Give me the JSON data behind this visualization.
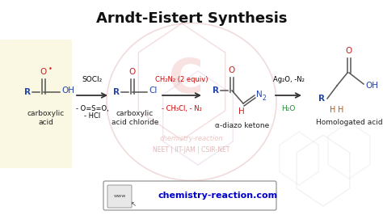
{
  "title": "Arndt-Eistert Synthesis",
  "title_fontsize": 13,
  "title_fontweight": "bold",
  "bg_color": "#ffffff",
  "watermark_text": "chemistry-reaction",
  "watermark_color": "#e8b0b0",
  "neet_text": "NEET | IIT-JAM | CSIR-NET",
  "neet_color": "#d4a0a0",
  "website_text": "chemistry-reaction.com",
  "website_color": "#0000cc",
  "arrow1_above": "SOCl₂",
  "arrow1_below1": "- O=S=O,",
  "arrow1_below2": "- HCl",
  "arrow2_above": "CH₂N₂ (2 equiv)",
  "arrow2_below": "- CH₃Cl, - N₂",
  "arrow2_above_color": "#cc0000",
  "arrow2_below_color": "#cc0000",
  "arrow3_above": "Ag₂O, -N₂",
  "arrow3_below": "H₂O",
  "arrow3_above_color": "#000000",
  "arrow3_below_color": "#228833",
  "label1": "carboxylic\nacid",
  "label2": "carboxylic\nacid chloride",
  "label3": "α-diazo ketone",
  "label4": "Homologated acid",
  "blue": "#2244aa",
  "red": "#cc2222",
  "black": "#222222",
  "gray": "#555555"
}
